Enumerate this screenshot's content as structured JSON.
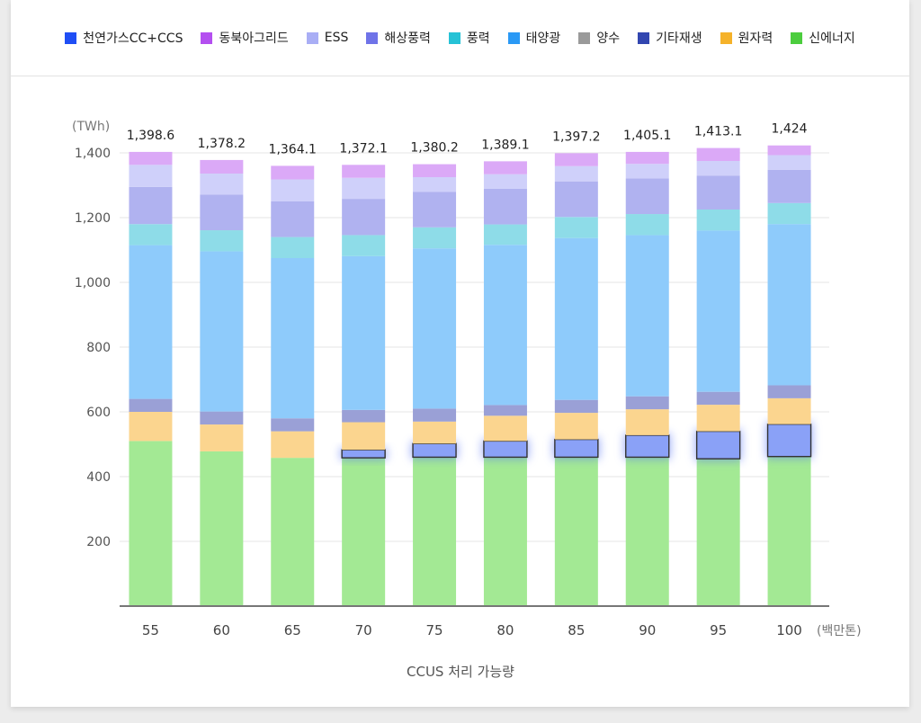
{
  "colors": {
    "legend": {
      "lng_ccs": "#1f4ef5",
      "northeast_grid": "#b44ff0",
      "ess": "#a9aef5",
      "offshore_wind": "#6f73e8",
      "wind": "#26c2d6",
      "solar": "#2a99f5",
      "pumped": "#9a9a9a",
      "other_renew": "#3246b0",
      "nuclear": "#f5b22a",
      "new_energy": "#4ccd3e"
    },
    "bars": {
      "new_energy": "#a3e994",
      "ccus": "#8aa1f7",
      "nuclear": "#fbd58f",
      "other_renew": "#9aa0d6",
      "solar": "#8ecbfb",
      "wind": "#8edce8",
      "offshore_wind": "#b0b2f0",
      "ess": "#cfd0fa",
      "northeast_grid": "#dba9f7"
    }
  },
  "legend": [
    {
      "key": "lng_ccs",
      "label": "천연가스CC+CCS"
    },
    {
      "key": "northeast_grid",
      "label": "동북아그리드"
    },
    {
      "key": "ess",
      "label": "ESS"
    },
    {
      "key": "offshore_wind",
      "label": "해상풍력"
    },
    {
      "key": "wind",
      "label": "풍력"
    },
    {
      "key": "solar",
      "label": "태양광"
    },
    {
      "key": "pumped",
      "label": "양수"
    },
    {
      "key": "other_renew",
      "label": "기타재생"
    },
    {
      "key": "nuclear",
      "label": "원자력"
    },
    {
      "key": "new_energy",
      "label": "신에너지"
    }
  ],
  "chart_data": {
    "type": "bar",
    "stacked": true,
    "ylabel": "(TWh)",
    "xlabel": "CCUS 처리 가능량",
    "xunit": "(백만톤)",
    "ylim": [
      0,
      1400
    ],
    "yticks": [
      200,
      400,
      600,
      800,
      1000,
      1200,
      1400
    ],
    "grid": true,
    "legend_position": "top",
    "categories": [
      "55",
      "60",
      "65",
      "70",
      "75",
      "80",
      "85",
      "90",
      "95",
      "100"
    ],
    "totals": [
      1398.6,
      1378.2,
      1364.1,
      1372.1,
      1380.2,
      1389.1,
      1397.2,
      1405.1,
      1413.1,
      1424
    ],
    "total_labels": [
      "1,398.6",
      "1,378.2",
      "1,364.1",
      "1,372.1",
      "1,380.2",
      "1,389.1",
      "1,397.2",
      "1,405.1",
      "1,413.1",
      "1,424"
    ],
    "series": [
      {
        "key": "new_energy",
        "values": [
          510,
          478,
          458,
          458,
          460,
          460,
          460,
          460,
          455,
          462
        ]
      },
      {
        "key": "lng_ccs",
        "highlight": true,
        "values": [
          0,
          0,
          0,
          25,
          42,
          50,
          55,
          68,
          85,
          100
        ]
      },
      {
        "key": "nuclear",
        "values": [
          90,
          83,
          82,
          85,
          68,
          78,
          82,
          80,
          82,
          80
        ]
      },
      {
        "key": "other_renew",
        "values": [
          40,
          40,
          40,
          38,
          40,
          33,
          40,
          40,
          40,
          40
        ]
      },
      {
        "key": "solar",
        "values": [
          475,
          495,
          495,
          475,
          495,
          495,
          500,
          498,
          498,
          498
        ]
      },
      {
        "key": "wind",
        "values": [
          65,
          65,
          65,
          65,
          65,
          63,
          65,
          65,
          65,
          65
        ]
      },
      {
        "key": "offshore_wind",
        "values": [
          115,
          110,
          110,
          112,
          110,
          110,
          110,
          110,
          105,
          103
        ]
      },
      {
        "key": "ess",
        "values": [
          68,
          65,
          68,
          65,
          45,
          45,
          47,
          45,
          45,
          45
        ]
      },
      {
        "key": "northeast_grid",
        "values": [
          40,
          42,
          42,
          40,
          40,
          40,
          40,
          37,
          40,
          30
        ]
      }
    ]
  }
}
